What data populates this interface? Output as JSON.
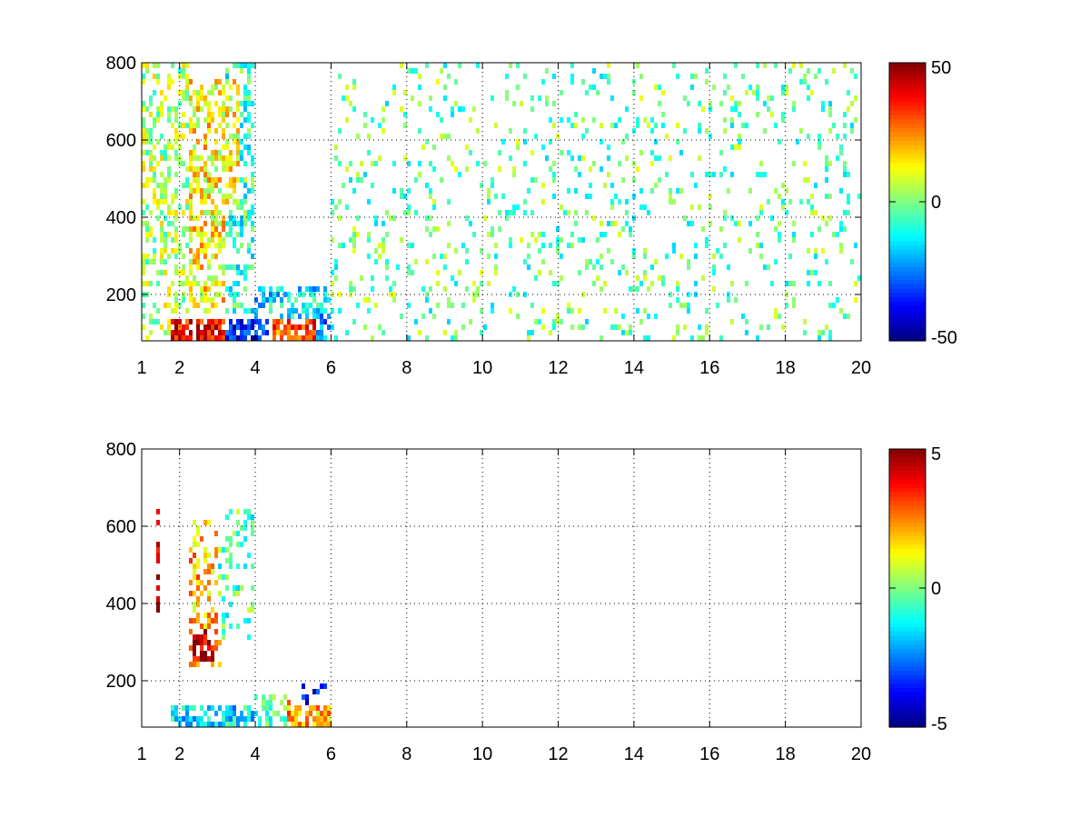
{
  "chart_data": [
    {
      "type": "heatmap",
      "title": "",
      "xlabel": "",
      "ylabel": "",
      "x_ticks": [
        "1",
        "2",
        "4",
        "6",
        "8",
        "10",
        "12",
        "14",
        "16",
        "18",
        "20"
      ],
      "x_tick_values": [
        1,
        2,
        4,
        6,
        8,
        10,
        12,
        14,
        16,
        18,
        20
      ],
      "y_ticks": [
        "200",
        "400",
        "600",
        "800"
      ],
      "y_tick_values": [
        200,
        400,
        600,
        800
      ],
      "xlim": [
        1,
        20
      ],
      "ylim": [
        80,
        800
      ],
      "grid": true,
      "colormap": "jet",
      "colorbar": {
        "ticks": [
          "50",
          "0",
          "-50"
        ],
        "tick_values": [
          50,
          0,
          -50
        ],
        "range": [
          -50,
          50
        ],
        "placement": "right"
      },
      "regions": [
        {
          "x": [
            1.0,
            2.2
          ],
          "y": [
            80,
            800
          ],
          "value": 4,
          "density": 0.35
        },
        {
          "x": [
            2.2,
            3.2
          ],
          "y": [
            150,
            760
          ],
          "value": 14,
          "density": 0.55
        },
        {
          "x": [
            3.2,
            4.0
          ],
          "y": [
            150,
            800
          ],
          "value": -8,
          "density": 0.45
        },
        {
          "x": [
            2.8,
            3.6
          ],
          "y": [
            420,
            760
          ],
          "value": 12,
          "density": 0.5
        },
        {
          "x": [
            1.8,
            3.2
          ],
          "y": [
            85,
            130
          ],
          "value": 38,
          "density": 0.8
        },
        {
          "x": [
            3.2,
            4.4
          ],
          "y": [
            85,
            130
          ],
          "value": -35,
          "density": 0.8
        },
        {
          "x": [
            4.4,
            5.6
          ],
          "y": [
            85,
            140
          ],
          "value": 30,
          "density": 0.7
        },
        {
          "x": [
            4.0,
            6.0
          ],
          "y": [
            130,
            220
          ],
          "value": -15,
          "density": 0.45
        },
        {
          "x": [
            5.6,
            6.0
          ],
          "y": [
            85,
            150
          ],
          "value": -22,
          "density": 0.6
        },
        {
          "x": [
            6.0,
            20.0
          ],
          "y": [
            80,
            800
          ],
          "value": -3,
          "density": 0.12
        }
      ]
    },
    {
      "type": "heatmap",
      "title": "",
      "xlabel": "",
      "ylabel": "",
      "x_ticks": [
        "1",
        "2",
        "4",
        "6",
        "8",
        "10",
        "12",
        "14",
        "16",
        "18",
        "20"
      ],
      "x_tick_values": [
        1,
        2,
        4,
        6,
        8,
        10,
        12,
        14,
        16,
        18,
        20
      ],
      "y_ticks": [
        "200",
        "400",
        "600",
        "800"
      ],
      "y_tick_values": [
        200,
        400,
        600,
        800
      ],
      "xlim": [
        1,
        20
      ],
      "ylim": [
        80,
        800
      ],
      "grid": true,
      "colormap": "jet",
      "colorbar": {
        "ticks": [
          "5",
          "0",
          "-5"
        ],
        "tick_values": [
          5,
          0,
          -5
        ],
        "range": [
          -5,
          5
        ],
        "placement": "right"
      },
      "regions": [
        {
          "x": [
            1.4,
            1.5
          ],
          "y": [
            380,
            640
          ],
          "value": 4.5,
          "density": 0.7
        },
        {
          "x": [
            2.2,
            3.1
          ],
          "y": [
            230,
            620
          ],
          "value": 2.0,
          "density": 0.4
        },
        {
          "x": [
            2.3,
            2.9
          ],
          "y": [
            250,
            340
          ],
          "value": 4.5,
          "density": 0.5
        },
        {
          "x": [
            3.0,
            4.0
          ],
          "y": [
            300,
            650
          ],
          "value": -0.5,
          "density": 0.3
        },
        {
          "x": [
            1.8,
            4.2
          ],
          "y": [
            85,
            140
          ],
          "value": -1.5,
          "density": 0.75
        },
        {
          "x": [
            4.0,
            4.8
          ],
          "y": [
            85,
            160
          ],
          "value": -0.5,
          "density": 0.5
        },
        {
          "x": [
            4.8,
            6.0
          ],
          "y": [
            85,
            150
          ],
          "value": 2.0,
          "density": 0.7
        },
        {
          "x": [
            5.0,
            6.0
          ],
          "y": [
            130,
            190
          ],
          "value": -3.5,
          "density": 0.25
        }
      ]
    }
  ]
}
